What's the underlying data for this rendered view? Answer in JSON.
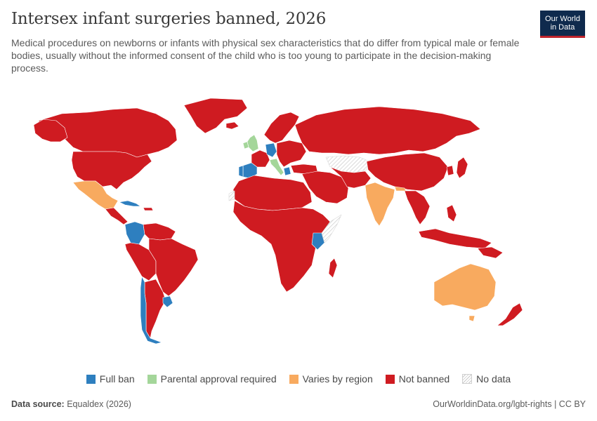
{
  "header": {
    "title": "Intersex infant surgeries banned, 2026",
    "subtitle": "Medical procedures on newborns or infants with physical sex characteristics that do differ from typical male or female bodies, usually without the informed consent of the child who is too young to participate in the decision-making process."
  },
  "logo": {
    "line1": "Our World",
    "line2": "in Data"
  },
  "colors": {
    "full_ban": "#2e7fbf",
    "parental": "#a4d69a",
    "varies": "#f8aa5f",
    "not_banned": "#cf1b21",
    "no_data": "#eeeeee",
    "border": "#ffffff"
  },
  "legend": {
    "items": [
      {
        "label": "Full ban",
        "color": "#2e7fbf"
      },
      {
        "label": "Parental approval required",
        "color": "#a4d69a"
      },
      {
        "label": "Varies by region",
        "color": "#f8aa5f"
      },
      {
        "label": "Not banned",
        "color": "#cf1b21"
      },
      {
        "label": "No data",
        "color": "hatched"
      }
    ]
  },
  "map_data": {
    "full_ban": [
      "Spain",
      "Portugal",
      "Germany",
      "Greece",
      "Colombia",
      "Chile",
      "Uruguay",
      "Kenya",
      "Cuba"
    ],
    "parental_approval_required": [
      "United Kingdom",
      "Ireland",
      "Italy"
    ],
    "varies_by_region": [
      "Mexico",
      "India",
      "Australia",
      "Nepal"
    ],
    "no_data": [
      "Kazakhstan",
      "Western Sahara",
      "Somalia"
    ]
  },
  "footer": {
    "source_label": "Data source:",
    "source": "Equaldex (2026)",
    "url": "OurWorldinData.org/lgbt-rights",
    "license": "CC BY"
  }
}
